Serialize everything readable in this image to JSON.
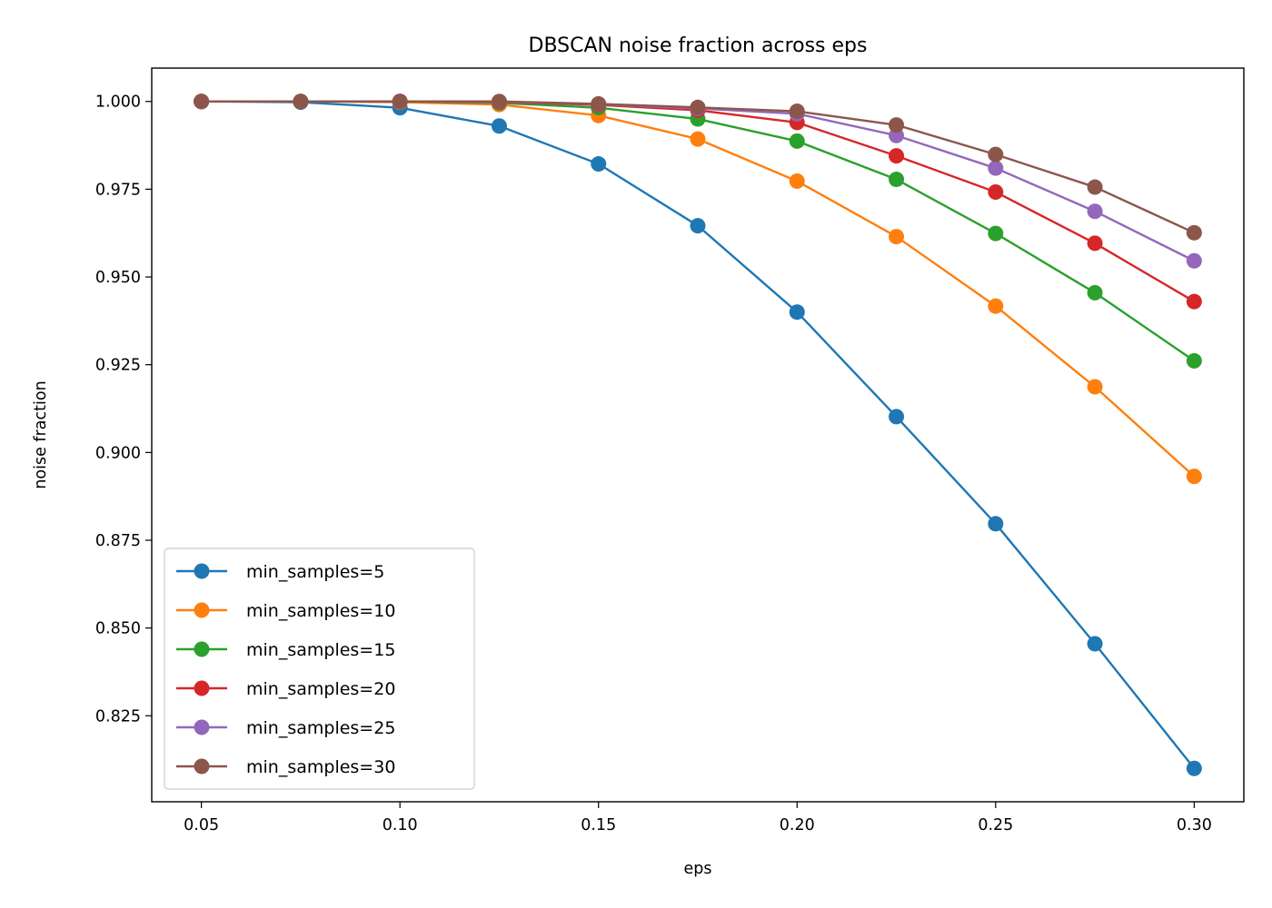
{
  "chart_data": {
    "type": "line",
    "title": "DBSCAN noise fraction across eps",
    "xlabel": "eps",
    "ylabel": "noise fraction",
    "x": [
      0.05,
      0.075,
      0.1,
      0.125,
      0.15,
      0.175,
      0.2,
      0.225,
      0.25,
      0.275,
      0.3
    ],
    "xlim": [
      0.0375,
      0.3125
    ],
    "ylim": [
      0.8005,
      1.0095
    ],
    "xticks": [
      "0.05",
      "0.10",
      "0.15",
      "0.20",
      "0.25",
      "0.30"
    ],
    "yticks": [
      "0.825",
      "0.850",
      "0.875",
      "0.900",
      "0.925",
      "0.950",
      "0.975",
      "1.000"
    ],
    "grid": false,
    "legend_position": "lower-left",
    "markers": true,
    "series": [
      {
        "name": "min_samples=5",
        "color": "#1f77b4",
        "values": [
          1.0,
          0.9998,
          0.9982,
          0.993,
          0.9822,
          0.9646,
          0.94,
          0.9102,
          0.8797,
          0.8455,
          0.81
        ]
      },
      {
        "name": "min_samples=10",
        "color": "#ff7f0e",
        "values": [
          1.0,
          1.0,
          0.9998,
          0.9991,
          0.996,
          0.9893,
          0.9773,
          0.9615,
          0.9417,
          0.9187,
          0.8932
        ]
      },
      {
        "name": "min_samples=15",
        "color": "#2ca02c",
        "values": [
          1.0,
          1.0,
          1.0,
          0.9996,
          0.9982,
          0.995,
          0.9887,
          0.9778,
          0.9624,
          0.9455,
          0.9261
        ]
      },
      {
        "name": "min_samples=20",
        "color": "#d62728",
        "values": [
          1.0,
          1.0,
          1.0,
          0.9998,
          0.999,
          0.9975,
          0.994,
          0.9845,
          0.9742,
          0.9596,
          0.943
        ]
      },
      {
        "name": "min_samples=25",
        "color": "#9467bd",
        "values": [
          1.0,
          1.0,
          1.0,
          0.9999,
          0.9992,
          0.998,
          0.9965,
          0.9903,
          0.981,
          0.9687,
          0.9546
        ]
      },
      {
        "name": "min_samples=30",
        "color": "#8c564b",
        "values": [
          1.0,
          1.0,
          1.0,
          1.0,
          0.9993,
          0.9983,
          0.9972,
          0.9933,
          0.9849,
          0.9756,
          0.9626
        ]
      }
    ]
  }
}
